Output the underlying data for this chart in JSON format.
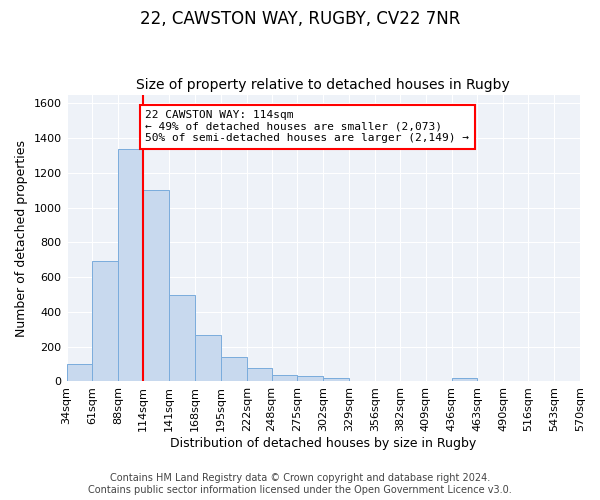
{
  "title1": "22, CAWSTON WAY, RUGBY, CV22 7NR",
  "title2": "Size of property relative to detached houses in Rugby",
  "xlabel": "Distribution of detached houses by size in Rugby",
  "ylabel": "Number of detached properties",
  "annotation_line1": "22 CAWSTON WAY: 114sqm",
  "annotation_line2": "← 49% of detached houses are smaller (2,073)",
  "annotation_line3": "50% of semi-detached houses are larger (2,149) →",
  "bin_edges": [
    34,
    61,
    88,
    114,
    141,
    168,
    195,
    222,
    248,
    275,
    302,
    329,
    356,
    382,
    409,
    436,
    463,
    490,
    516,
    543,
    570
  ],
  "bin_counts": [
    100,
    695,
    1335,
    1100,
    495,
    270,
    140,
    75,
    35,
    30,
    20,
    0,
    0,
    0,
    0,
    20,
    0,
    0,
    0,
    0
  ],
  "bar_color": "#c8d9ee",
  "bar_edgecolor": "#7aacdc",
  "vline_color": "red",
  "vline_x": 114,
  "annotation_box_edgecolor": "red",
  "ylim": [
    0,
    1650
  ],
  "yticks": [
    0,
    200,
    400,
    600,
    800,
    1000,
    1200,
    1400,
    1600
  ],
  "footer1": "Contains HM Land Registry data © Crown copyright and database right 2024.",
  "footer2": "Contains public sector information licensed under the Open Government Licence v3.0.",
  "title1_fontsize": 12,
  "title2_fontsize": 10,
  "xlabel_fontsize": 9,
  "ylabel_fontsize": 9,
  "tick_fontsize": 8,
  "footer_fontsize": 7,
  "annotation_fontsize": 8
}
